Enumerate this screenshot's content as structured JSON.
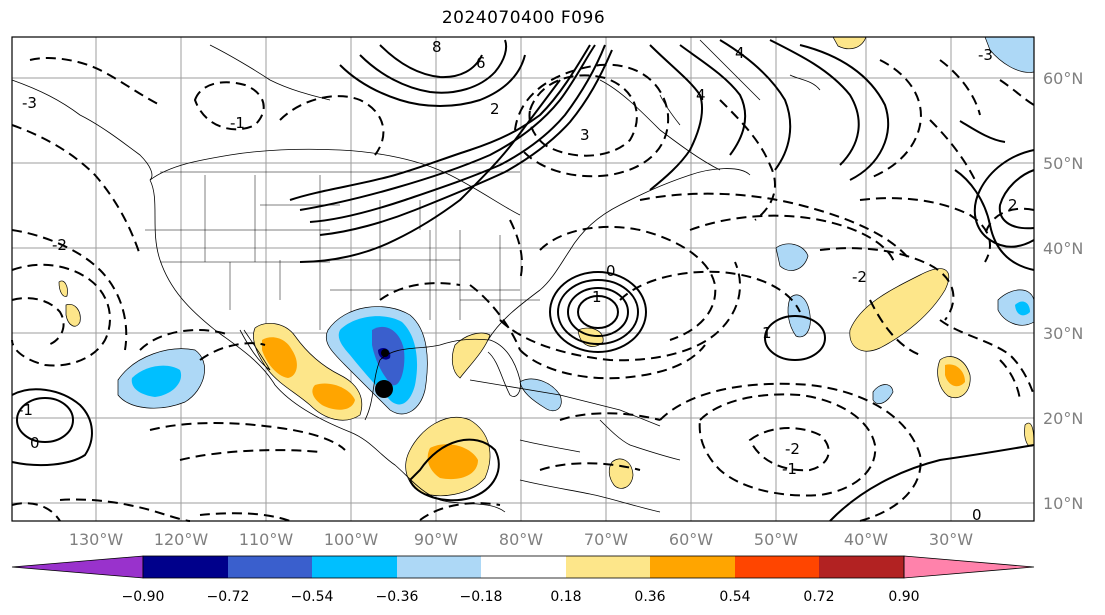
{
  "title": "2024070400 F096",
  "map": {
    "lon_labels": [
      "130°W",
      "120°W",
      "110°W",
      "100°W",
      "90°W",
      "80°W",
      "70°W",
      "60°W",
      "50°W",
      "40°W",
      "30°W"
    ],
    "lat_labels": [
      "60°N",
      "50°N",
      "40°N",
      "30°N",
      "20°N",
      "10°N"
    ],
    "contour_labels": [
      "-3",
      "-2",
      "-1",
      "0",
      "1",
      "2",
      "3",
      "4",
      "6",
      "8",
      "-1",
      "-2",
      "0",
      "-2",
      "1",
      "0",
      "-1",
      "2",
      "-3",
      "4"
    ]
  },
  "colorbar": {
    "ticks": [
      "−0.90",
      "−0.72",
      "−0.54",
      "−0.36",
      "−0.18",
      "0.18",
      "0.36",
      "0.54",
      "0.72",
      "0.90"
    ],
    "colors": [
      "#9932cc",
      "#00008b",
      "#3a5fcd",
      "#00bfff",
      "#add8f6",
      "#ffffff",
      "#fde68a",
      "#ffa500",
      "#ff4500",
      "#b22222",
      "#ff82ab"
    ]
  }
}
